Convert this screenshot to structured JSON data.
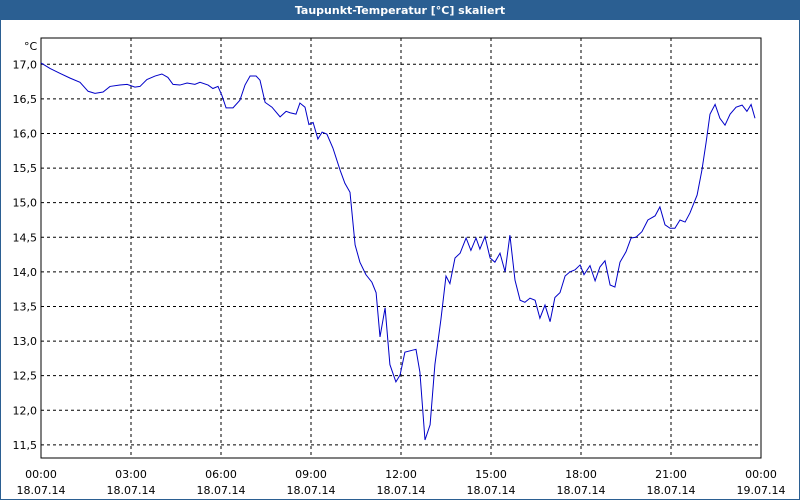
{
  "chart_data": {
    "type": "line",
    "title": "Taupunkt-Temperatur [°C] skaliert",
    "y_unit": "°C",
    "x": [
      0.0,
      0.3,
      0.63,
      0.97,
      1.3,
      1.57,
      1.8,
      2.07,
      2.3,
      2.63,
      2.87,
      3.13,
      3.3,
      3.53,
      3.8,
      4.03,
      4.23,
      4.4,
      4.63,
      4.87,
      5.13,
      5.3,
      5.57,
      5.73,
      5.9,
      6.03,
      6.17,
      6.4,
      6.63,
      6.8,
      6.97,
      7.17,
      7.3,
      7.47,
      7.7,
      7.97,
      8.17,
      8.3,
      8.5,
      8.63,
      8.8,
      8.93,
      9.07,
      9.23,
      9.37,
      9.53,
      9.73,
      9.97,
      10.13,
      10.3,
      10.47,
      10.63,
      10.83,
      11.03,
      11.17,
      11.3,
      11.47,
      11.63,
      11.83,
      11.97,
      12.13,
      12.4,
      12.5,
      12.63,
      12.8,
      12.97,
      13.13,
      13.33,
      13.5,
      13.63,
      13.8,
      13.97,
      14.17,
      14.33,
      14.5,
      14.63,
      14.8,
      14.97,
      15.13,
      15.3,
      15.47,
      15.63,
      15.8,
      15.97,
      16.13,
      16.3,
      16.47,
      16.63,
      16.8,
      16.97,
      17.13,
      17.3,
      17.47,
      17.63,
      17.8,
      17.97,
      18.1,
      18.3,
      18.47,
      18.63,
      18.8,
      18.97,
      19.13,
      19.3,
      19.5,
      19.67,
      19.83,
      20.03,
      20.23,
      20.47,
      20.63,
      20.8,
      20.97,
      21.13,
      21.3,
      21.47,
      21.63,
      21.87,
      22.03,
      22.17,
      22.3,
      22.47,
      22.63,
      22.8,
      22.97,
      23.17,
      23.37,
      23.53,
      23.67,
      23.8
    ],
    "series": [
      {
        "name": "Taupunkt-Temperatur",
        "color": "#0000c8",
        "values": [
          17.02,
          16.94,
          16.87,
          16.8,
          16.74,
          16.61,
          16.58,
          16.6,
          16.68,
          16.7,
          16.71,
          16.67,
          16.68,
          16.78,
          16.83,
          16.86,
          16.81,
          16.71,
          16.7,
          16.73,
          16.71,
          16.74,
          16.7,
          16.65,
          16.68,
          16.55,
          16.37,
          16.37,
          16.48,
          16.7,
          16.83,
          16.83,
          16.77,
          16.45,
          16.38,
          16.24,
          16.32,
          16.3,
          16.28,
          16.44,
          16.38,
          16.13,
          16.16,
          15.92,
          16.02,
          15.99,
          15.79,
          15.47,
          15.28,
          15.15,
          14.39,
          14.14,
          13.96,
          13.85,
          13.7,
          13.06,
          13.48,
          12.66,
          12.41,
          12.51,
          12.84,
          12.87,
          12.88,
          12.55,
          11.57,
          11.79,
          12.66,
          13.31,
          13.94,
          13.83,
          14.2,
          14.27,
          14.49,
          14.31,
          14.49,
          14.33,
          14.51,
          14.2,
          14.14,
          14.27,
          14.0,
          14.53,
          13.88,
          13.59,
          13.56,
          13.62,
          13.59,
          13.33,
          13.52,
          13.28,
          13.63,
          13.7,
          13.94,
          14.0,
          14.03,
          14.1,
          13.96,
          14.09,
          13.87,
          14.07,
          14.16,
          13.81,
          13.78,
          14.14,
          14.29,
          14.49,
          14.5,
          14.58,
          14.75,
          14.81,
          14.94,
          14.68,
          14.63,
          14.63,
          14.75,
          14.72,
          14.85,
          15.11,
          15.47,
          15.87,
          16.28,
          16.42,
          16.22,
          16.12,
          16.28,
          16.38,
          16.41,
          16.32,
          16.42,
          16.22
        ]
      }
    ],
    "xlim": [
      0,
      24
    ],
    "xticks": [
      {
        "value": 0,
        "label": "00:00",
        "date": "18.07.14"
      },
      {
        "value": 3,
        "label": "03:00",
        "date": "18.07.14"
      },
      {
        "value": 6,
        "label": "06:00",
        "date": "18.07.14"
      },
      {
        "value": 9,
        "label": "09:00",
        "date": "18.07.14"
      },
      {
        "value": 12,
        "label": "12:00",
        "date": "18.07.14"
      },
      {
        "value": 15,
        "label": "15:00",
        "date": "18.07.14"
      },
      {
        "value": 18,
        "label": "18:00",
        "date": "18.07.14"
      },
      {
        "value": 21,
        "label": "21:00",
        "date": "18.07.14"
      },
      {
        "value": 24,
        "label": "00:00",
        "date": "19.07.14"
      }
    ],
    "ylim": [
      11.31,
      17.38
    ],
    "yticks": [
      {
        "value": 11.5,
        "label": "11,5"
      },
      {
        "value": 12,
        "label": "12,0"
      },
      {
        "value": 12.5,
        "label": "12,5"
      },
      {
        "value": 13,
        "label": "13,0"
      },
      {
        "value": 13.5,
        "label": "13,5"
      },
      {
        "value": 14,
        "label": "14,0"
      },
      {
        "value": 14.5,
        "label": "14,5"
      },
      {
        "value": 15,
        "label": "15,0"
      },
      {
        "value": 15.5,
        "label": "15,5"
      },
      {
        "value": 16,
        "label": "16,0"
      },
      {
        "value": 16.5,
        "label": "16,5"
      },
      {
        "value": 17,
        "label": "17,0"
      }
    ],
    "grid": true
  }
}
